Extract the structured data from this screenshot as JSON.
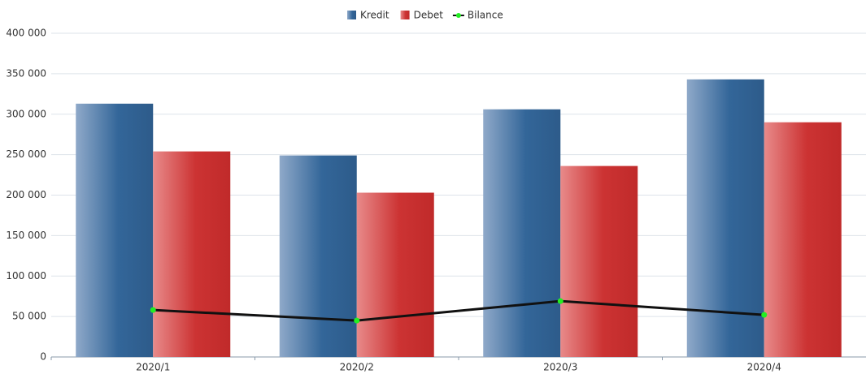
{
  "chart_data": {
    "type": "bar",
    "categories": [
      "2020/1",
      "2020/2",
      "2020/3",
      "2020/4"
    ],
    "series": [
      {
        "name": "Kredit",
        "type": "bar",
        "color": "#336699",
        "values": [
          313000,
          249000,
          306000,
          343000
        ]
      },
      {
        "name": "Debet",
        "type": "bar",
        "color": "#cc3333",
        "values": [
          254000,
          203000,
          236000,
          290000
        ]
      },
      {
        "name": "Bilance",
        "type": "line",
        "color": "#111111",
        "marker_color": "#22ee22",
        "values": [
          58000,
          45000,
          69000,
          52000
        ]
      }
    ],
    "ylim": [
      0,
      400000
    ],
    "yticks": [
      0,
      {
        "value": 50000,
        "label": "50 000"
      },
      {
        "value": 100000,
        "label": "100 000"
      },
      {
        "value": 150000,
        "label": "150 000"
      },
      {
        "value": 200000,
        "label": "200 000"
      },
      {
        "value": 250000,
        "label": "250 000"
      },
      {
        "value": 300000,
        "label": "300 000"
      },
      {
        "value": 350000,
        "label": "350 000"
      },
      {
        "value": 400000,
        "label": "400 000"
      }
    ],
    "grid": true,
    "legend": "top"
  }
}
